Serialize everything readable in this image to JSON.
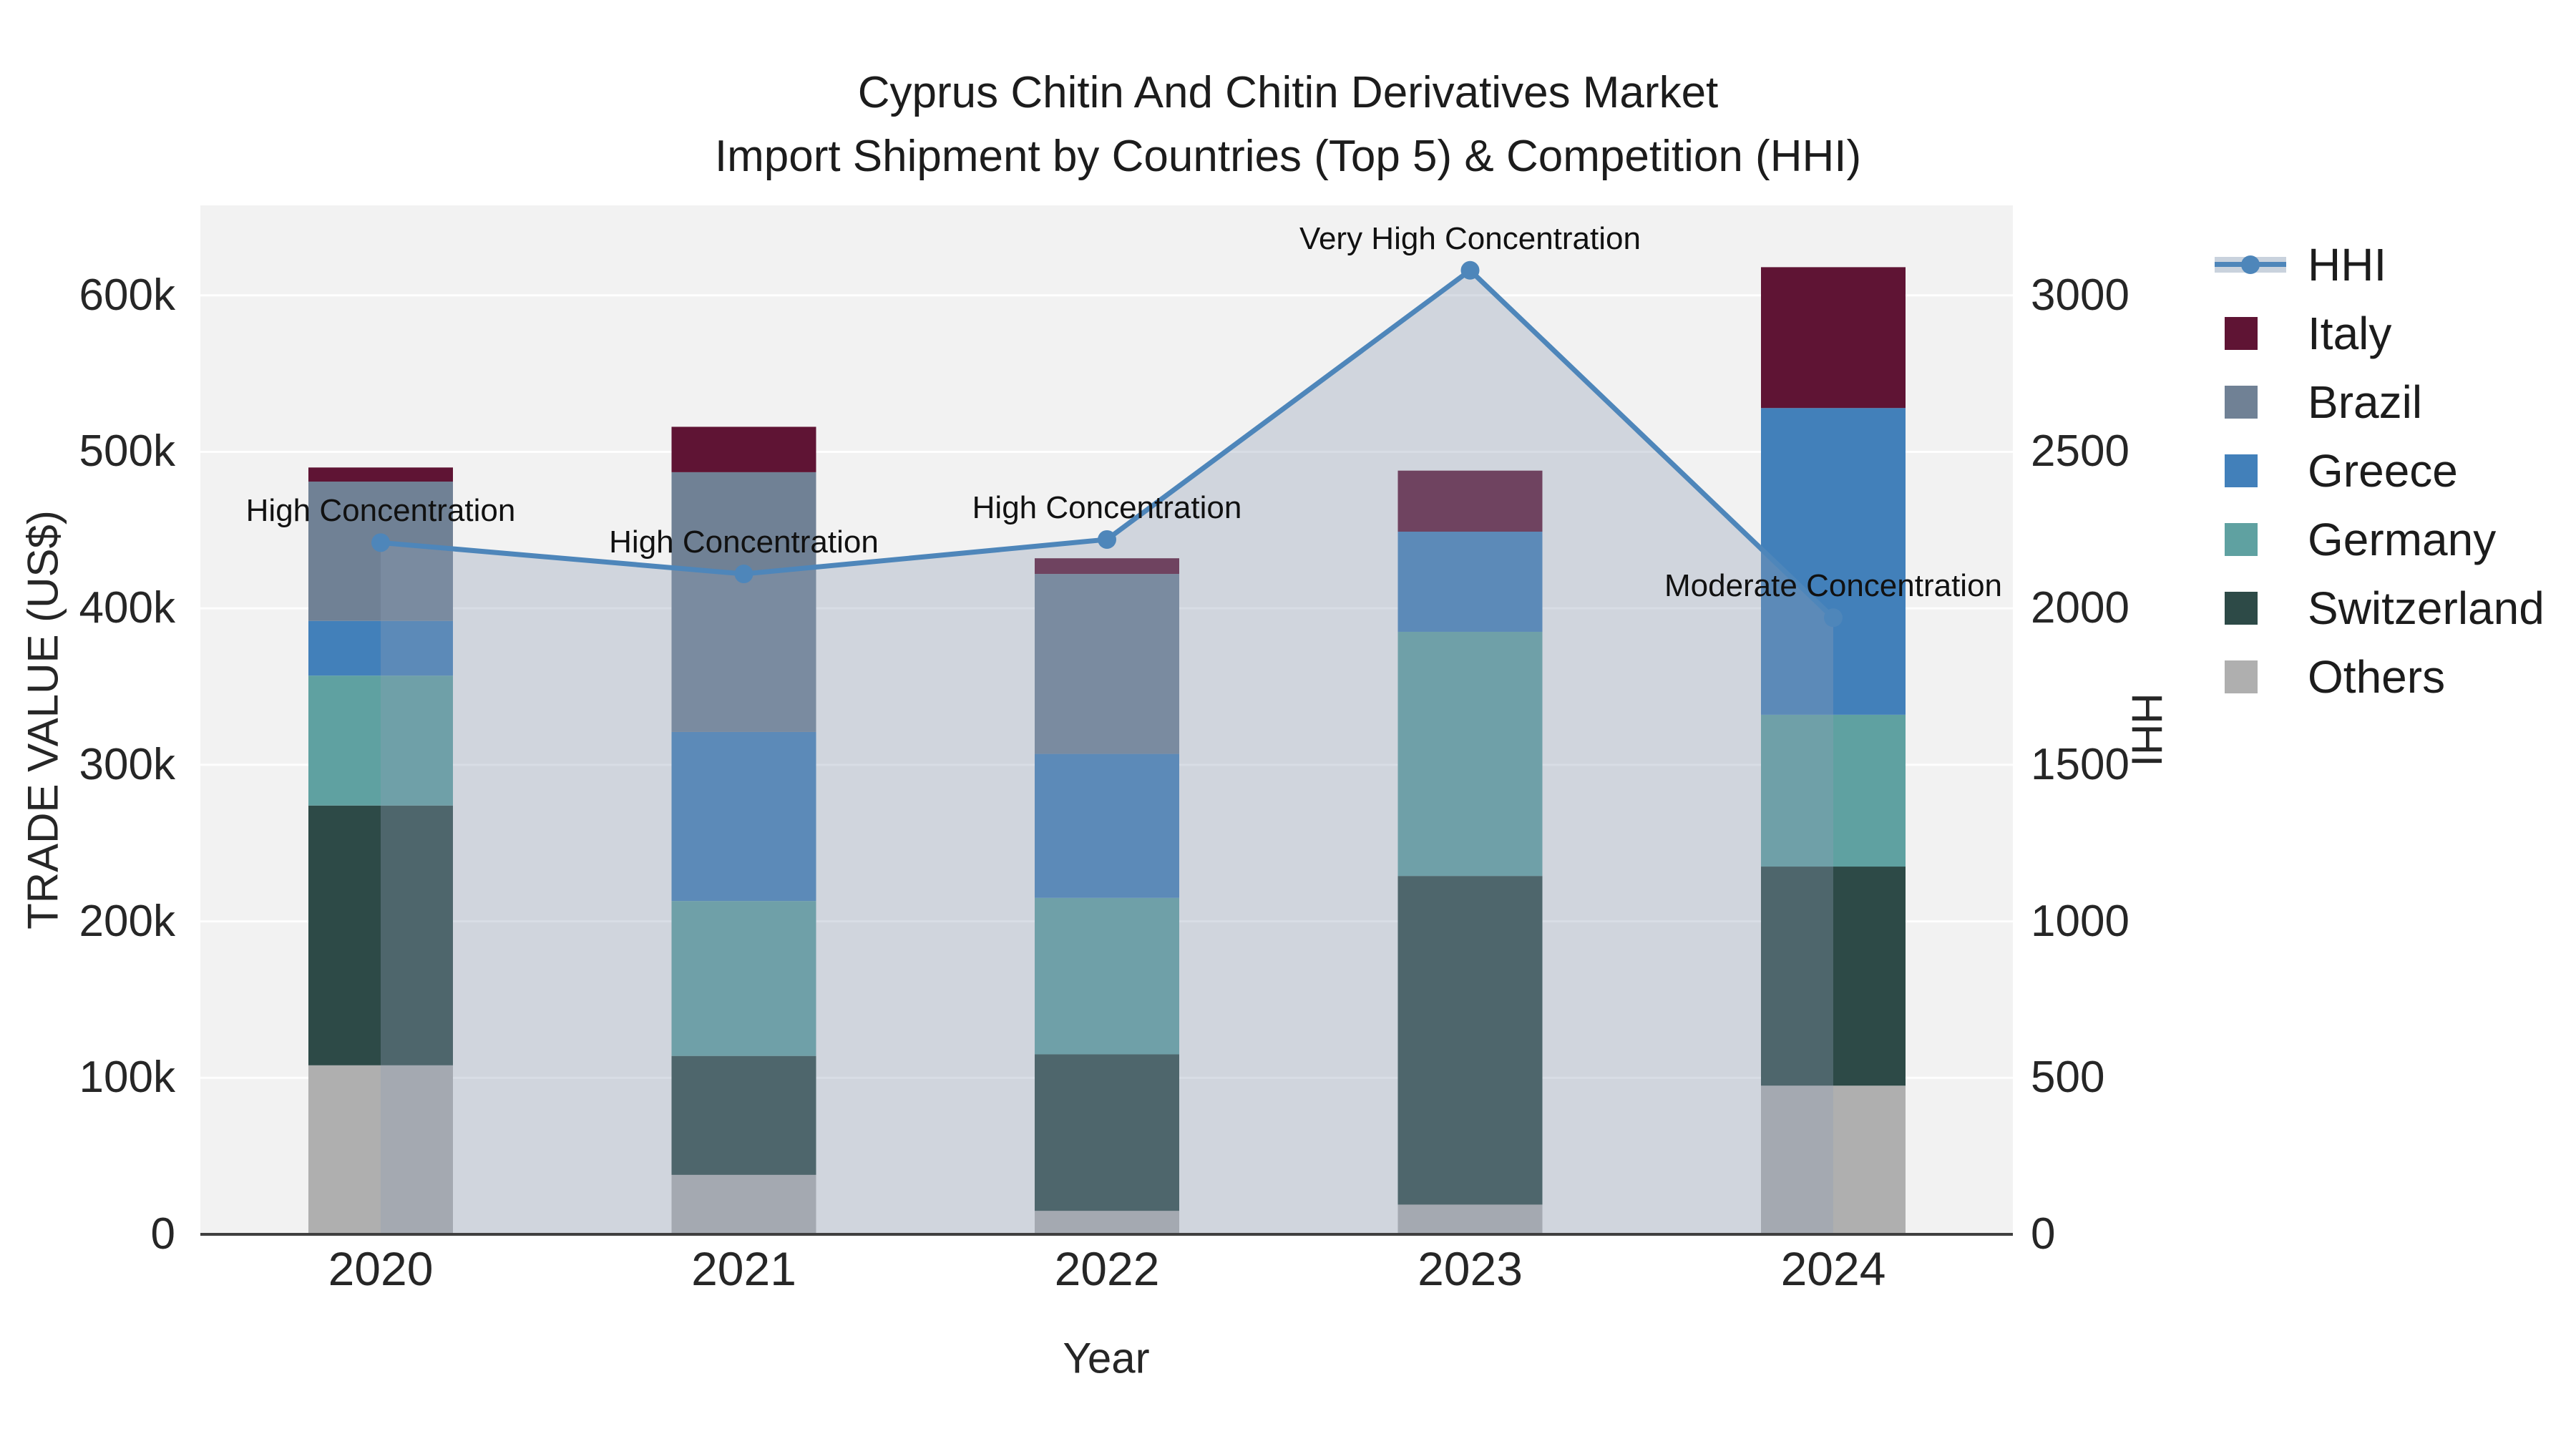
{
  "title": {
    "line1": "Cyprus Chitin And Chitin Derivatives Market",
    "line2": "Import Shipment by Countries (Top 5) & Competition (HHI)"
  },
  "chart_data": {
    "type": "bar+line",
    "categories": [
      "2020",
      "2021",
      "2022",
      "2023",
      "2024"
    ],
    "xlabel": "Year",
    "ylabel_left": "TRADE VALUE (US$)",
    "ylabel_right": "HHI",
    "y_left": {
      "tick_labels": [
        "0",
        "100k",
        "200k",
        "300k",
        "400k",
        "500k",
        "600k"
      ],
      "tick_values": [
        0,
        100000,
        200000,
        300000,
        400000,
        500000,
        600000
      ],
      "max": 657500
    },
    "y_right": {
      "tick_labels": [
        "0",
        "500",
        "1000",
        "1500",
        "2000",
        "2500",
        "3000"
      ],
      "tick_values": [
        0,
        500,
        1000,
        1500,
        2000,
        2500,
        3000
      ],
      "max": 3287.5
    },
    "series": [
      {
        "name": "Others",
        "color": "#afafaf",
        "values": [
          108000,
          38000,
          15000,
          19000,
          95000
        ]
      },
      {
        "name": "Switzerland",
        "color": "#2d4a47",
        "values": [
          166000,
          76000,
          100000,
          210000,
          140000
        ]
      },
      {
        "name": "Germany",
        "color": "#5fa1a1",
        "values": [
          83000,
          99000,
          100000,
          156000,
          97000
        ]
      },
      {
        "name": "Greece",
        "color": "#4280ba",
        "values": [
          35000,
          108000,
          92000,
          64000,
          196000
        ]
      },
      {
        "name": "Brazil",
        "color": "#708195",
        "values": [
          89000,
          166000,
          115000,
          0,
          0
        ]
      },
      {
        "name": "Italy",
        "color": "#5f1434",
        "values": [
          9000,
          29000,
          10000,
          39000,
          90000
        ]
      }
    ],
    "hhi": {
      "name": "HHI",
      "color": "#4e86ba",
      "fill_color": "rgba(143,159,183,0.34)",
      "values": [
        2210,
        2110,
        2220,
        3080,
        1970
      ],
      "annotations": [
        "High Concentration",
        "High Concentration",
        "High Concentration",
        "Very High Concentration",
        "Moderate Concentration"
      ]
    },
    "legend_order": [
      "HHI",
      "Italy",
      "Brazil",
      "Greece",
      "Germany",
      "Switzerland",
      "Others"
    ]
  }
}
